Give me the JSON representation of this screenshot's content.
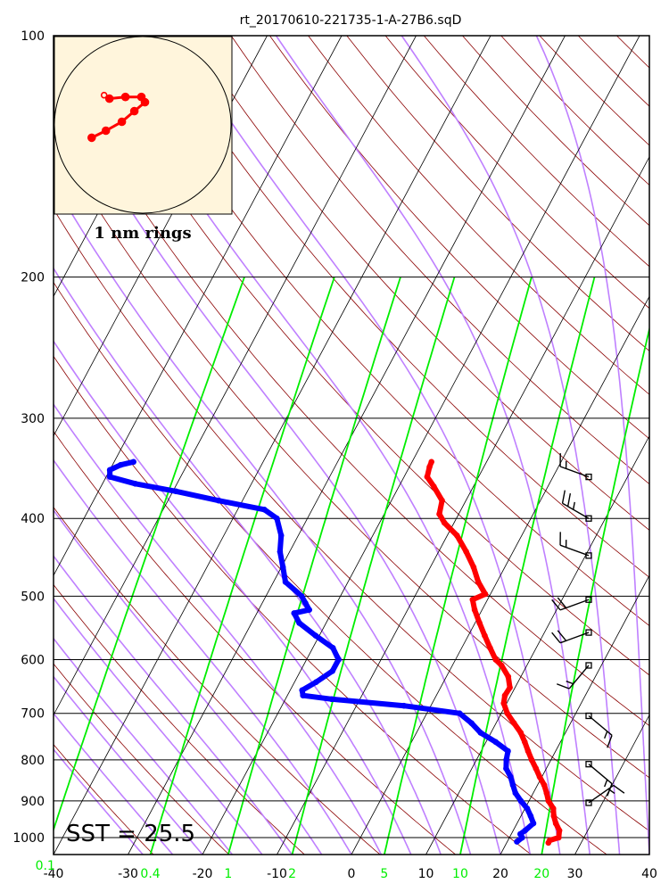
{
  "title": "rt_20170610-221735-1-A-27B6.sqD",
  "sst_label": "SST = 25.5",
  "inset": {
    "label": "1 nm rings"
  },
  "colors": {
    "temperature": "#ff0000",
    "dewpoint": "#0000ff",
    "dry_adiabat": "#8b0000",
    "moist_adiabat": "#bf80ff",
    "mixing_ratio": "#00ee00",
    "isotherm": "#000000",
    "inset_bg": "#fff5dc"
  },
  "chart_data": {
    "type": "skew-t",
    "title": "rt_20170610-221735-1-A-27B6.sqD",
    "xlabel": "",
    "ylabel": "",
    "xlim": [
      -40,
      40
    ],
    "ylim": [
      1050,
      100
    ],
    "y_scale": "log",
    "grid": true,
    "pressure_ticks": [
      {
        "value": 100,
        "label": "100"
      },
      {
        "value": 200,
        "label": "200"
      },
      {
        "value": 300,
        "label": "300"
      },
      {
        "value": 400,
        "label": "400"
      },
      {
        "value": 500,
        "label": "500"
      },
      {
        "value": 600,
        "label": "600"
      },
      {
        "value": 700,
        "label": "700"
      },
      {
        "value": 800,
        "label": "800"
      },
      {
        "value": 900,
        "label": "900"
      },
      {
        "value": 1000,
        "label": "1000"
      }
    ],
    "temperature_ticks": [
      {
        "value": -40,
        "label": "-40"
      },
      {
        "value": -30,
        "label": "-30"
      },
      {
        "value": -20,
        "label": "-20"
      },
      {
        "value": -10,
        "label": "-10"
      },
      {
        "value": 0,
        "label": "0"
      },
      {
        "value": 10,
        "label": "10"
      },
      {
        "value": 20,
        "label": "20"
      },
      {
        "value": 30,
        "label": "30"
      },
      {
        "value": 40,
        "label": "40"
      }
    ],
    "mixing_ratio_ticks": [
      {
        "value": 0.1,
        "label": "0.1"
      },
      {
        "value": 0.4,
        "label": "0.4"
      },
      {
        "value": 1,
        "label": "1"
      },
      {
        "value": 2,
        "label": "2"
      },
      {
        "value": 5,
        "label": "5"
      },
      {
        "value": 10,
        "label": "10"
      },
      {
        "value": 20,
        "label": "20"
      }
    ],
    "series": [
      {
        "key": "temperature",
        "points": [
          {
            "p": 1015,
            "t": 25.6
          },
          {
            "p": 1008,
            "t": 25.6
          },
          {
            "p": 1000,
            "t": 26.6
          },
          {
            "p": 980,
            "t": 26.2
          },
          {
            "p": 960,
            "t": 25.2
          },
          {
            "p": 940,
            "t": 24.4
          },
          {
            "p": 920,
            "t": 23.8
          },
          {
            "p": 900,
            "t": 22.6
          },
          {
            "p": 880,
            "t": 21.8
          },
          {
            "p": 860,
            "t": 20.9
          },
          {
            "p": 840,
            "t": 19.7
          },
          {
            "p": 820,
            "t": 18.6
          },
          {
            "p": 800,
            "t": 17.4
          },
          {
            "p": 780,
            "t": 16.3
          },
          {
            "p": 760,
            "t": 15.2
          },
          {
            "p": 740,
            "t": 14.0
          },
          {
            "p": 720,
            "t": 12.4
          },
          {
            "p": 700,
            "t": 10.8
          },
          {
            "p": 680,
            "t": 9.6
          },
          {
            "p": 665,
            "t": 9.2
          },
          {
            "p": 650,
            "t": 9.3
          },
          {
            "p": 630,
            "t": 8.3
          },
          {
            "p": 610,
            "t": 6.6
          },
          {
            "p": 600,
            "t": 5.4
          },
          {
            "p": 580,
            "t": 3.8
          },
          {
            "p": 560,
            "t": 2.2
          },
          {
            "p": 540,
            "t": 0.6
          },
          {
            "p": 520,
            "t": -1.0
          },
          {
            "p": 505,
            "t": -2.0
          },
          {
            "p": 497,
            "t": -0.7
          },
          {
            "p": 480,
            "t": -2.5
          },
          {
            "p": 460,
            "t": -4.2
          },
          {
            "p": 440,
            "t": -6.3
          },
          {
            "p": 420,
            "t": -8.7
          },
          {
            "p": 405,
            "t": -11.3
          },
          {
            "p": 395,
            "t": -12.6
          },
          {
            "p": 380,
            "t": -13.2
          },
          {
            "p": 365,
            "t": -15.3
          },
          {
            "p": 355,
            "t": -16.9
          },
          {
            "p": 345,
            "t": -17.3
          },
          {
            "p": 340,
            "t": -17.4
          }
        ]
      },
      {
        "key": "dewpoint",
        "points": [
          {
            "p": 1012,
            "t": 21.3
          },
          {
            "p": 1000,
            "t": 21.7
          },
          {
            "p": 990,
            "t": 21.2
          },
          {
            "p": 980,
            "t": 21.6
          },
          {
            "p": 960,
            "t": 22.2
          },
          {
            "p": 940,
            "t": 21.3
          },
          {
            "p": 920,
            "t": 20.3
          },
          {
            "p": 900,
            "t": 18.9
          },
          {
            "p": 880,
            "t": 17.6
          },
          {
            "p": 860,
            "t": 16.7
          },
          {
            "p": 840,
            "t": 15.8
          },
          {
            "p": 820,
            "t": 14.6
          },
          {
            "p": 800,
            "t": 14.0
          },
          {
            "p": 780,
            "t": 13.6
          },
          {
            "p": 760,
            "t": 11.3
          },
          {
            "p": 740,
            "t": 8.6
          },
          {
            "p": 720,
            "t": 6.7
          },
          {
            "p": 700,
            "t": 4.4
          },
          {
            "p": 685,
            "t": -3.6
          },
          {
            "p": 672,
            "t": -13.8
          },
          {
            "p": 665,
            "t": -17.9
          },
          {
            "p": 655,
            "t": -18.4
          },
          {
            "p": 640,
            "t": -17.1
          },
          {
            "p": 620,
            "t": -15.7
          },
          {
            "p": 600,
            "t": -15.7
          },
          {
            "p": 580,
            "t": -17.3
          },
          {
            "p": 560,
            "t": -20.5
          },
          {
            "p": 540,
            "t": -23.6
          },
          {
            "p": 525,
            "t": -25.0
          },
          {
            "p": 520,
            "t": -23.2
          },
          {
            "p": 510,
            "t": -24.2
          },
          {
            "p": 500,
            "t": -25.2
          },
          {
            "p": 480,
            "t": -28.4
          },
          {
            "p": 460,
            "t": -29.8
          },
          {
            "p": 440,
            "t": -31.3
          },
          {
            "p": 420,
            "t": -32.3
          },
          {
            "p": 400,
            "t": -34.1
          },
          {
            "p": 390,
            "t": -36.4
          },
          {
            "p": 380,
            "t": -43.2
          },
          {
            "p": 370,
            "t": -49.6
          },
          {
            "p": 362,
            "t": -55.6
          },
          {
            "p": 355,
            "t": -59.5
          },
          {
            "p": 348,
            "t": -60.0
          },
          {
            "p": 343,
            "t": -58.9
          },
          {
            "p": 340,
            "t": -57.4
          }
        ]
      }
    ],
    "wind_barbs": [
      {
        "p": 355,
        "dir": 290,
        "speed_kt": 15
      },
      {
        "p": 400,
        "dir": 300,
        "speed_kt": 25
      },
      {
        "p": 445,
        "dir": 290,
        "speed_kt": 15
      },
      {
        "p": 505,
        "dir": 250,
        "speed_kt": 20
      },
      {
        "p": 555,
        "dir": 250,
        "speed_kt": 20
      },
      {
        "p": 610,
        "dir": 220,
        "speed_kt": 15
      },
      {
        "p": 705,
        "dir": 130,
        "speed_kt": 15
      },
      {
        "p": 810,
        "dir": 130,
        "speed_kt": 15
      },
      {
        "p": 905,
        "dir": 55,
        "speed_kt": 15
      }
    ],
    "hodograph": {
      "ring_spacing_nm": 1,
      "track_nm": [
        {
          "x": 0.21,
          "y": 0.57
        },
        {
          "x": 0.29,
          "y": 0.53
        },
        {
          "x": 0.38,
          "y": 0.48
        },
        {
          "x": 0.45,
          "y": 0.42
        },
        {
          "x": 0.51,
          "y": 0.37
        },
        {
          "x": 0.49,
          "y": 0.34
        },
        {
          "x": 0.4,
          "y": 0.34
        },
        {
          "x": 0.31,
          "y": 0.35
        },
        {
          "x": 0.28,
          "y": 0.33
        }
      ]
    }
  }
}
